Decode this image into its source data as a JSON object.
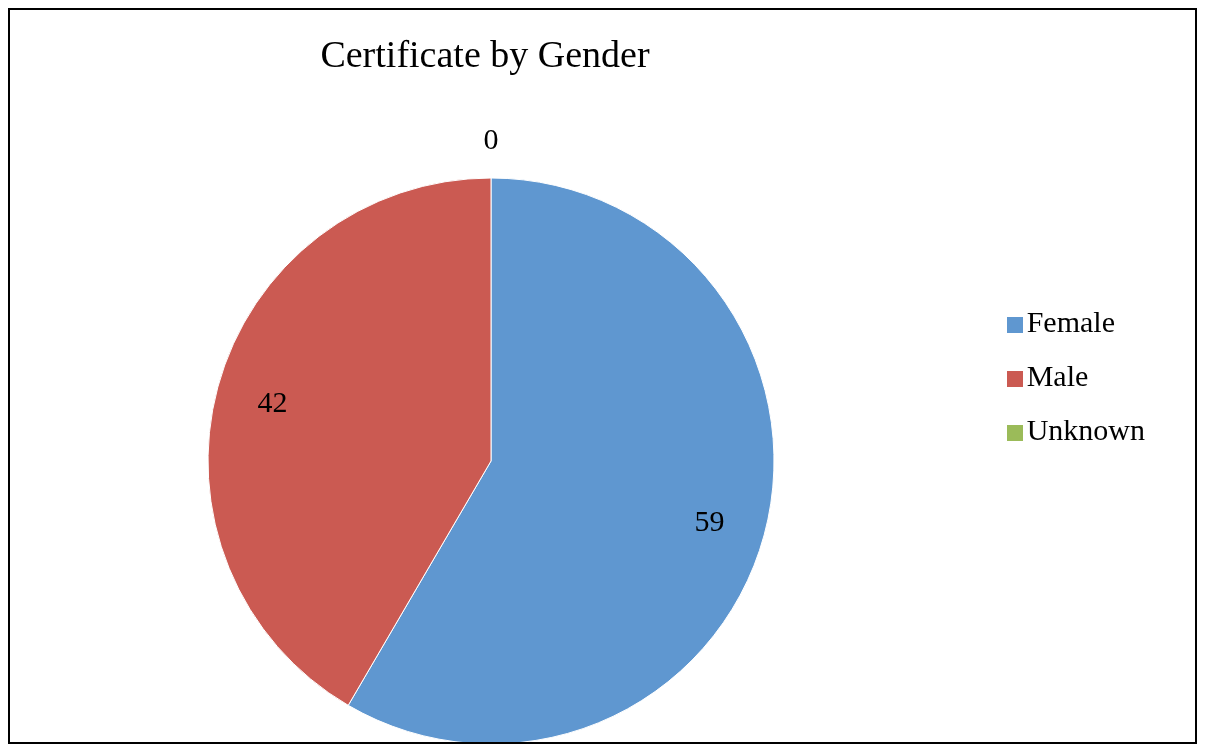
{
  "chart_data": {
    "type": "pie",
    "title": "Certificate by Gender",
    "categories": [
      "Female",
      "Male",
      "Unknown"
    ],
    "values": [
      59,
      42,
      0
    ],
    "colors": [
      "#5f97d0",
      "#cb5a52",
      "#9bbb59"
    ],
    "value_labels": [
      "59",
      "42",
      "0"
    ],
    "legend": "right"
  }
}
